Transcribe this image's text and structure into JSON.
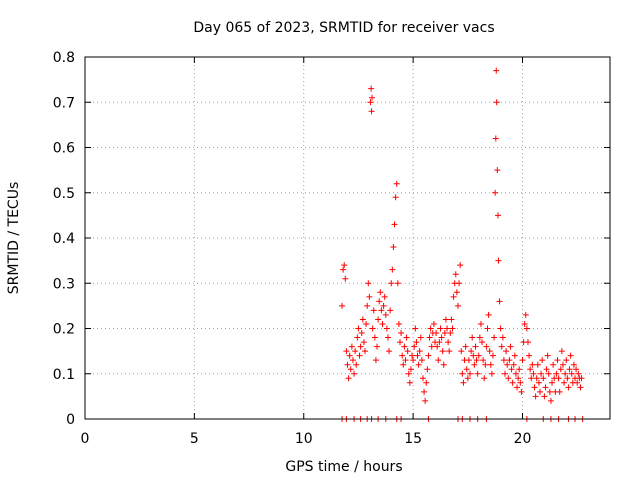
{
  "chart_data": {
    "type": "scatter",
    "title": "Day 065 of 2023, SRMTID for receiver vacs",
    "xlabel": "GPS time / hours",
    "ylabel": "SRMTID / TECUs",
    "xlim": [
      0,
      24
    ],
    "ylim": [
      0,
      0.8
    ],
    "xticks": [
      0,
      5,
      10,
      15,
      20
    ],
    "xtick_labels": [
      "0",
      "5",
      "10",
      "15",
      "20"
    ],
    "yticks": [
      0,
      0.1,
      0.2,
      0.3,
      0.4,
      0.5,
      0.6,
      0.7,
      0.8
    ],
    "ytick_labels": [
      "0",
      "0.1",
      "0.2",
      "0.3",
      "0.4",
      "0.5",
      "0.6",
      "0.7",
      "0.8"
    ],
    "grid": true,
    "marker": "+",
    "marker_color": "#ff0000",
    "series": [
      {
        "name": "SRMTID",
        "points": [
          [
            11.75,
            0.25
          ],
          [
            11.8,
            0.33
          ],
          [
            11.85,
            0.34
          ],
          [
            11.9,
            0.31
          ],
          [
            11.95,
            0.15
          ],
          [
            12.0,
            0.12
          ],
          [
            12.05,
            0.09
          ],
          [
            12.1,
            0.14
          ],
          [
            12.15,
            0.11
          ],
          [
            12.2,
            0.16
          ],
          [
            12.25,
            0.13
          ],
          [
            12.3,
            0.1
          ],
          [
            12.35,
            0.15
          ],
          [
            12.4,
            0.12
          ],
          [
            12.45,
            0.18
          ],
          [
            12.5,
            0.2
          ],
          [
            12.55,
            0.14
          ],
          [
            12.6,
            0.16
          ],
          [
            12.65,
            0.19
          ],
          [
            12.7,
            0.22
          ],
          [
            12.75,
            0.17
          ],
          [
            12.8,
            0.15
          ],
          [
            12.85,
            0.21
          ],
          [
            12.9,
            0.25
          ],
          [
            12.95,
            0.3
          ],
          [
            13.0,
            0.27
          ],
          [
            13.05,
            0.7
          ],
          [
            13.08,
            0.73
          ],
          [
            13.1,
            0.68
          ],
          [
            13.12,
            0.71
          ],
          [
            13.15,
            0.2
          ],
          [
            13.2,
            0.24
          ],
          [
            13.25,
            0.18
          ],
          [
            13.3,
            0.13
          ],
          [
            13.35,
            0.16
          ],
          [
            13.4,
            0.22
          ],
          [
            13.45,
            0.26
          ],
          [
            13.5,
            0.28
          ],
          [
            13.55,
            0.24
          ],
          [
            13.6,
            0.21
          ],
          [
            13.65,
            0.25
          ],
          [
            13.7,
            0.27
          ],
          [
            13.75,
            0.23
          ],
          [
            13.8,
            0.2
          ],
          [
            13.85,
            0.18
          ],
          [
            13.9,
            0.15
          ],
          [
            13.95,
            0.24
          ],
          [
            14.0,
            0.3
          ],
          [
            14.05,
            0.33
          ],
          [
            14.1,
            0.38
          ],
          [
            14.15,
            0.43
          ],
          [
            14.2,
            0.49
          ],
          [
            14.25,
            0.52
          ],
          [
            14.3,
            0.3
          ],
          [
            14.35,
            0.21
          ],
          [
            14.4,
            0.17
          ],
          [
            14.45,
            0.19
          ],
          [
            14.5,
            0.14
          ],
          [
            14.55,
            0.12
          ],
          [
            14.6,
            0.16
          ],
          [
            14.65,
            0.13
          ],
          [
            14.7,
            0.18
          ],
          [
            14.75,
            0.15
          ],
          [
            14.8,
            0.1
          ],
          [
            14.85,
            0.08
          ],
          [
            14.9,
            0.11
          ],
          [
            14.95,
            0.14
          ],
          [
            15.0,
            0.13
          ],
          [
            15.05,
            0.16
          ],
          [
            15.1,
            0.2
          ],
          [
            15.15,
            0.17
          ],
          [
            15.2,
            0.14
          ],
          [
            15.25,
            0.12
          ],
          [
            15.3,
            0.15
          ],
          [
            15.35,
            0.18
          ],
          [
            15.4,
            0.13
          ],
          [
            15.45,
            0.09
          ],
          [
            15.5,
            0.06
          ],
          [
            15.55,
            0.04
          ],
          [
            15.6,
            0.08
          ],
          [
            15.65,
            0.11
          ],
          [
            15.7,
            0.14
          ],
          [
            15.75,
            0.18
          ],
          [
            15.8,
            0.2
          ],
          [
            15.85,
            0.16
          ],
          [
            15.9,
            0.19
          ],
          [
            15.95,
            0.21
          ],
          [
            16.0,
            0.17
          ],
          [
            16.05,
            0.19
          ],
          [
            16.1,
            0.16
          ],
          [
            16.15,
            0.13
          ],
          [
            16.2,
            0.17
          ],
          [
            16.25,
            0.2
          ],
          [
            16.3,
            0.18
          ],
          [
            16.35,
            0.15
          ],
          [
            16.4,
            0.12
          ],
          [
            16.45,
            0.19
          ],
          [
            16.5,
            0.22
          ],
          [
            16.55,
            0.2
          ],
          [
            16.6,
            0.17
          ],
          [
            16.65,
            0.15
          ],
          [
            16.7,
            0.19
          ],
          [
            16.75,
            0.22
          ],
          [
            16.8,
            0.2
          ],
          [
            16.85,
            0.27
          ],
          [
            16.9,
            0.3
          ],
          [
            16.95,
            0.32
          ],
          [
            17.0,
            0.28
          ],
          [
            17.05,
            0.25
          ],
          [
            17.1,
            0.3
          ],
          [
            17.15,
            0.34
          ],
          [
            17.2,
            0.15
          ],
          [
            17.25,
            0.1
          ],
          [
            17.3,
            0.08
          ],
          [
            17.35,
            0.13
          ],
          [
            17.4,
            0.16
          ],
          [
            17.45,
            0.11
          ],
          [
            17.5,
            0.09
          ],
          [
            17.55,
            0.13
          ],
          [
            17.6,
            0.1
          ],
          [
            17.65,
            0.15
          ],
          [
            17.7,
            0.18
          ],
          [
            17.75,
            0.14
          ],
          [
            17.8,
            0.12
          ],
          [
            17.85,
            0.16
          ],
          [
            17.9,
            0.13
          ],
          [
            17.95,
            0.1
          ],
          [
            18.0,
            0.14
          ],
          [
            18.05,
            0.18
          ],
          [
            18.1,
            0.21
          ],
          [
            18.15,
            0.17
          ],
          [
            18.2,
            0.13
          ],
          [
            18.25,
            0.09
          ],
          [
            18.3,
            0.12
          ],
          [
            18.35,
            0.16
          ],
          [
            18.4,
            0.2
          ],
          [
            18.45,
            0.23
          ],
          [
            18.5,
            0.15
          ],
          [
            18.55,
            0.12
          ],
          [
            18.6,
            0.1
          ],
          [
            18.65,
            0.14
          ],
          [
            18.7,
            0.18
          ],
          [
            18.75,
            0.5
          ],
          [
            18.78,
            0.62
          ],
          [
            18.8,
            0.77
          ],
          [
            18.82,
            0.7
          ],
          [
            18.85,
            0.55
          ],
          [
            18.88,
            0.45
          ],
          [
            18.9,
            0.35
          ],
          [
            18.95,
            0.26
          ],
          [
            19.0,
            0.2
          ],
          [
            19.05,
            0.16
          ],
          [
            19.1,
            0.18
          ],
          [
            19.15,
            0.13
          ],
          [
            19.2,
            0.1
          ],
          [
            19.25,
            0.15
          ],
          [
            19.3,
            0.12
          ],
          [
            19.35,
            0.09
          ],
          [
            19.4,
            0.13
          ],
          [
            19.45,
            0.16
          ],
          [
            19.5,
            0.11
          ],
          [
            19.55,
            0.08
          ],
          [
            19.6,
            0.12
          ],
          [
            19.65,
            0.14
          ],
          [
            19.7,
            0.1
          ],
          [
            19.75,
            0.07
          ],
          [
            19.8,
            0.09
          ],
          [
            19.85,
            0.11
          ],
          [
            19.9,
            0.08
          ],
          [
            19.95,
            0.06
          ],
          [
            20.0,
            0.13
          ],
          [
            20.05,
            0.17
          ],
          [
            20.1,
            0.21
          ],
          [
            20.15,
            0.23
          ],
          [
            20.2,
            0.2
          ],
          [
            20.25,
            0.17
          ],
          [
            20.3,
            0.14
          ],
          [
            20.35,
            0.11
          ],
          [
            20.4,
            0.09
          ],
          [
            20.45,
            0.12
          ],
          [
            20.5,
            0.1
          ],
          [
            20.55,
            0.07
          ],
          [
            20.6,
            0.05
          ],
          [
            20.65,
            0.09
          ],
          [
            20.7,
            0.12
          ],
          [
            20.75,
            0.08
          ],
          [
            20.8,
            0.06
          ],
          [
            20.85,
            0.1
          ],
          [
            20.9,
            0.13
          ],
          [
            20.95,
            0.09
          ],
          [
            21.0,
            0.05
          ],
          [
            21.05,
            0.07
          ],
          [
            21.1,
            0.11
          ],
          [
            21.15,
            0.14
          ],
          [
            21.2,
            0.1
          ],
          [
            21.25,
            0.06
          ],
          [
            21.3,
            0.04
          ],
          [
            21.35,
            0.08
          ],
          [
            21.4,
            0.12
          ],
          [
            21.45,
            0.09
          ],
          [
            21.5,
            0.06
          ],
          [
            21.55,
            0.1
          ],
          [
            21.6,
            0.13
          ],
          [
            21.65,
            0.09
          ],
          [
            21.7,
            0.06
          ],
          [
            21.75,
            0.11
          ],
          [
            21.8,
            0.15
          ],
          [
            21.85,
            0.12
          ],
          [
            21.9,
            0.08
          ],
          [
            21.95,
            0.1
          ],
          [
            22.0,
            0.13
          ],
          [
            22.05,
            0.09
          ],
          [
            22.1,
            0.07
          ],
          [
            22.15,
            0.11
          ],
          [
            22.2,
            0.14
          ],
          [
            22.25,
            0.1
          ],
          [
            22.3,
            0.08
          ],
          [
            22.35,
            0.12
          ],
          [
            22.4,
            0.09
          ],
          [
            22.45,
            0.11
          ],
          [
            22.5,
            0.08
          ],
          [
            22.55,
            0.1
          ],
          [
            22.6,
            0.09
          ],
          [
            22.65,
            0.07
          ],
          [
            22.7,
            0.09
          ],
          [
            11.75,
            0
          ],
          [
            11.95,
            0
          ],
          [
            12.3,
            0
          ],
          [
            12.6,
            0
          ],
          [
            12.9,
            0
          ],
          [
            13.1,
            0
          ],
          [
            13.4,
            0
          ],
          [
            13.75,
            0
          ],
          [
            14.25,
            0
          ],
          [
            14.45,
            0
          ],
          [
            15.7,
            0
          ],
          [
            17.05,
            0
          ],
          [
            17.25,
            0
          ],
          [
            17.6,
            0
          ],
          [
            17.95,
            0
          ],
          [
            18.35,
            0
          ],
          [
            20.2,
            0
          ],
          [
            20.95,
            0
          ],
          [
            21.3,
            0
          ],
          [
            21.65,
            0
          ],
          [
            22.1,
            0
          ],
          [
            22.4,
            0
          ],
          [
            22.75,
            0
          ]
        ]
      }
    ]
  }
}
